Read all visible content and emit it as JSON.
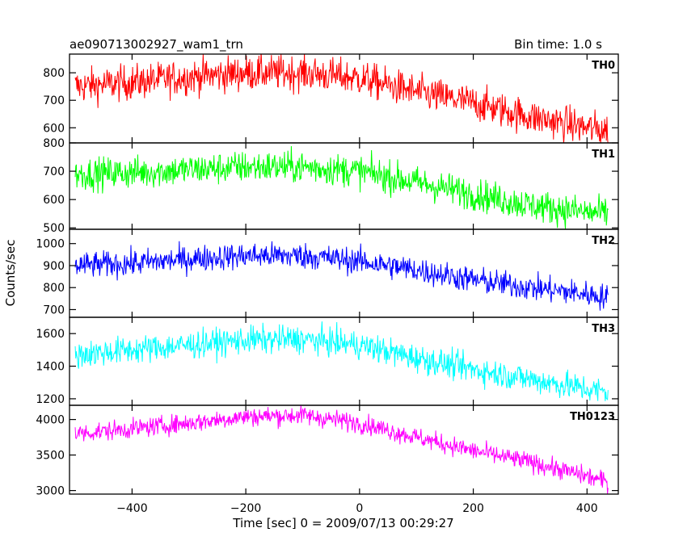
{
  "title_left": "ae090713002927_wam1_trn",
  "title_right": "Bin time: 1.0 s",
  "chart_data": {
    "type": "line",
    "xlabel": "Time [sec] 0 = 2009/07/13 00:29:27",
    "ylabel": "Counts/sec",
    "xlim": [
      -510,
      455
    ],
    "x_ticks": [
      -400,
      -200,
      0,
      200,
      400
    ],
    "x_range_data": [
      -500,
      437
    ],
    "bin_time_s": 1.0,
    "panels": [
      {
        "name": "TH0",
        "color": "#ff0000",
        "ylim": [
          545,
          868
        ],
        "y_ticks": [
          600,
          700,
          800
        ],
        "trend_t": [
          -500,
          -400,
          -300,
          -200,
          -100,
          0,
          100,
          200,
          300,
          400,
          437
        ],
        "trend_y": [
          750,
          765,
          785,
          800,
          800,
          780,
          730,
          690,
          640,
          600,
          590
        ],
        "noise": 45
      },
      {
        "name": "TH1",
        "color": "#00ff00",
        "ylim": [
          495,
          800
        ],
        "y_ticks": [
          500,
          600,
          700,
          800
        ],
        "trend_t": [
          -500,
          -400,
          -300,
          -200,
          -100,
          0,
          100,
          200,
          300,
          400,
          437
        ],
        "trend_y": [
          690,
          695,
          705,
          715,
          715,
          700,
          660,
          620,
          580,
          555,
          550
        ],
        "noise": 40
      },
      {
        "name": "TH2",
        "color": "#0000ff",
        "ylim": [
          665,
          1065
        ],
        "y_ticks": [
          700,
          800,
          900,
          1000
        ],
        "trend_t": [
          -500,
          -400,
          -300,
          -200,
          -100,
          0,
          100,
          200,
          300,
          400,
          437
        ],
        "trend_y": [
          900,
          910,
          930,
          945,
          945,
          920,
          880,
          835,
          800,
          770,
          755
        ],
        "noise": 42
      },
      {
        "name": "TH3",
        "color": "#00ffff",
        "ylim": [
          1160,
          1700
        ],
        "y_ticks": [
          1200,
          1400,
          1600
        ],
        "trend_t": [
          -500,
          -400,
          -300,
          -200,
          -100,
          0,
          100,
          200,
          300,
          400,
          437
        ],
        "trend_y": [
          1470,
          1500,
          1530,
          1560,
          1565,
          1530,
          1450,
          1380,
          1320,
          1260,
          1240
        ],
        "noise": 60
      },
      {
        "name": "TH0123",
        "color": "#ff00ff",
        "ylim": [
          2950,
          4200
        ],
        "y_ticks": [
          3000,
          3500,
          4000
        ],
        "trend_t": [
          -500,
          -400,
          -300,
          -200,
          -100,
          0,
          100,
          200,
          300,
          400,
          437
        ],
        "trend_y": [
          3800,
          3870,
          3950,
          4040,
          4060,
          3950,
          3750,
          3560,
          3400,
          3200,
          3120
        ],
        "noise": 95
      }
    ]
  }
}
